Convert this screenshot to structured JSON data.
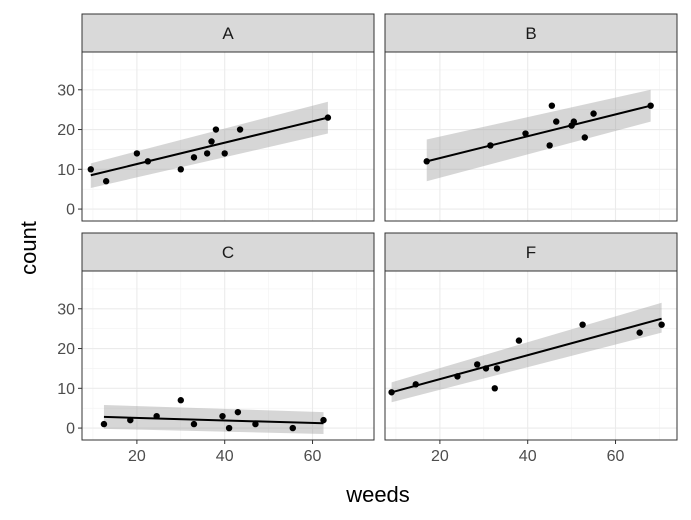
{
  "chart_data": {
    "type": "scatter",
    "facets": [
      "A",
      "B",
      "C",
      "F"
    ],
    "xlabel": "weeds",
    "ylabel": "count",
    "xlim": [
      7.5,
      74
    ],
    "ylim": [
      -3,
      39.5
    ],
    "x_ticks": [
      20,
      40,
      60
    ],
    "x_tick_labels": [
      "20",
      "40",
      "60"
    ],
    "y_ticks": [
      0,
      10,
      20,
      30
    ],
    "y_tick_labels": [
      "0",
      "10",
      "20",
      "30"
    ],
    "grid": true,
    "smooth": "linear fit with confidence band",
    "panels": [
      {
        "name": "A",
        "points": [
          {
            "x": 9.5,
            "y": 10
          },
          {
            "x": 13,
            "y": 7
          },
          {
            "x": 20,
            "y": 14
          },
          {
            "x": 22.5,
            "y": 12
          },
          {
            "x": 30,
            "y": 10
          },
          {
            "x": 33,
            "y": 13
          },
          {
            "x": 36,
            "y": 14
          },
          {
            "x": 37,
            "y": 17
          },
          {
            "x": 38,
            "y": 20
          },
          {
            "x": 40,
            "y": 14
          },
          {
            "x": 43.5,
            "y": 20
          },
          {
            "x": 63.5,
            "y": 23
          }
        ],
        "fit": {
          "x": [
            9.5,
            63.5
          ],
          "y": [
            8.5,
            23
          ],
          "ci_low": [
            5.3,
            19.0
          ],
          "ci_high": [
            11.5,
            27.0
          ]
        }
      },
      {
        "name": "B",
        "points": [
          {
            "x": 17,
            "y": 12
          },
          {
            "x": 31.5,
            "y": 16
          },
          {
            "x": 39.5,
            "y": 19
          },
          {
            "x": 45,
            "y": 16
          },
          {
            "x": 45.5,
            "y": 26
          },
          {
            "x": 46.5,
            "y": 22
          },
          {
            "x": 50,
            "y": 21
          },
          {
            "x": 50.5,
            "y": 22
          },
          {
            "x": 53,
            "y": 18
          },
          {
            "x": 55,
            "y": 24
          },
          {
            "x": 68,
            "y": 26
          }
        ],
        "fit": {
          "x": [
            17,
            68
          ],
          "y": [
            12,
            26
          ],
          "ci_low": [
            7.0,
            22.0
          ],
          "ci_high": [
            17.5,
            30.0
          ]
        }
      },
      {
        "name": "C",
        "points": [
          {
            "x": 12.5,
            "y": 1
          },
          {
            "x": 18.5,
            "y": 2
          },
          {
            "x": 24.5,
            "y": 3
          },
          {
            "x": 30,
            "y": 7
          },
          {
            "x": 33,
            "y": 1
          },
          {
            "x": 39.5,
            "y": 3
          },
          {
            "x": 41,
            "y": 0
          },
          {
            "x": 43,
            "y": 4
          },
          {
            "x": 47,
            "y": 1
          },
          {
            "x": 55.5,
            "y": 0
          },
          {
            "x": 62.5,
            "y": 2
          }
        ],
        "fit": {
          "x": [
            12.5,
            62.5
          ],
          "y": [
            2.8,
            1.2
          ],
          "ci_low": [
            -0.2,
            -1.5
          ],
          "ci_high": [
            5.8,
            4.0
          ]
        }
      },
      {
        "name": "F",
        "points": [
          {
            "x": 9,
            "y": 9
          },
          {
            "x": 14.5,
            "y": 11
          },
          {
            "x": 24,
            "y": 13
          },
          {
            "x": 28.5,
            "y": 16
          },
          {
            "x": 30.5,
            "y": 15
          },
          {
            "x": 32.5,
            "y": 10
          },
          {
            "x": 33,
            "y": 15
          },
          {
            "x": 38,
            "y": 22
          },
          {
            "x": 52.5,
            "y": 26
          },
          {
            "x": 65.5,
            "y": 24
          },
          {
            "x": 70.5,
            "y": 26
          }
        ],
        "fit": {
          "x": [
            9,
            70.5
          ],
          "y": [
            9,
            27.5
          ],
          "ci_low": [
            6.5,
            24.0
          ],
          "ci_high": [
            11.5,
            31.5
          ]
        }
      }
    ]
  }
}
